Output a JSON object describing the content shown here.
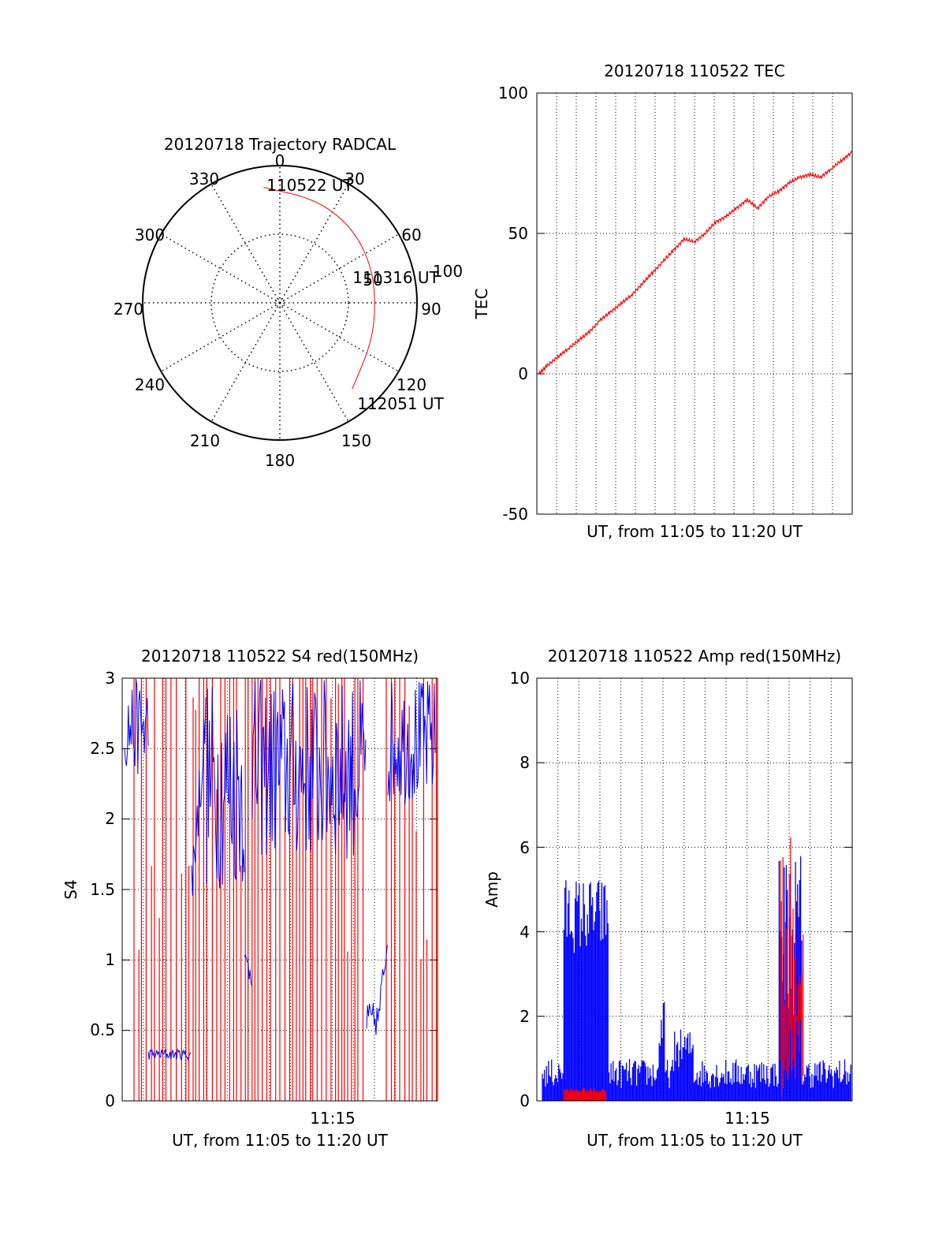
{
  "colors": {
    "red": "#ff0000",
    "blue": "#0000ff",
    "axis": "#000000",
    "grid": "#000000"
  },
  "chart_data": [
    {
      "id": "trajectory",
      "type": "polar",
      "title": "20120718 Trajectory RADCAL",
      "angle_labels": [
        "0",
        "30",
        "60",
        "90",
        "120",
        "150",
        "180",
        "210",
        "240",
        "270",
        "300",
        "330"
      ],
      "radial_labels": [
        "50",
        "100"
      ],
      "radial_max": 100,
      "grid": true,
      "track": {
        "color": "red",
        "points": [
          {
            "azimuth": 352,
            "zenith": 85
          },
          {
            "azimuth": 20,
            "zenith": 80
          },
          {
            "azimuth": 45,
            "zenith": 76
          },
          {
            "azimuth": 70,
            "zenith": 72
          },
          {
            "azimuth": 95,
            "zenith": 70
          },
          {
            "azimuth": 115,
            "zenith": 73
          },
          {
            "azimuth": 140,
            "zenith": 82
          }
        ]
      },
      "annotations": [
        {
          "text": "110522 UT",
          "azimuth": 1,
          "zenith": 88
        },
        {
          "text": "111316 UT",
          "azimuth": 76,
          "zenith": 85
        },
        {
          "text": "112051 UT",
          "azimuth": 139,
          "zenith": 110
        }
      ]
    },
    {
      "id": "tec",
      "type": "line",
      "title": "20120718 110522 TEC",
      "xlabel": "UT, from 11:05 to 11:20 UT",
      "ylabel": "TEC",
      "ylim": [
        -50,
        100
      ],
      "yticks": [
        "100",
        "50",
        "0",
        "-50"
      ],
      "xlim": [
        0,
        15
      ],
      "xticks": [],
      "grid": true,
      "series": [
        {
          "color": "red",
          "x": [
            0.1,
            0.5,
            1.0,
            1.5,
            2.0,
            2.5,
            3.0,
            3.5,
            4.0,
            4.5,
            5.0,
            5.5,
            6.0,
            6.5,
            7.0,
            7.5,
            8.0,
            8.5,
            9.0,
            9.5,
            10.0,
            10.5,
            11.0,
            11.5,
            12.0,
            12.5,
            13.0,
            13.5,
            14.0,
            14.5,
            15.0
          ],
          "y": [
            0,
            3,
            6,
            9,
            12,
            15,
            19,
            22,
            25,
            28,
            32,
            36,
            40,
            44,
            48,
            47,
            50,
            54,
            56,
            59,
            62,
            59,
            63,
            65,
            68,
            70,
            71,
            70,
            73,
            76,
            79
          ]
        }
      ]
    },
    {
      "id": "s4",
      "type": "line",
      "title": "20120718 110522 S4 red(150MHz)",
      "xlabel": "UT, from 11:05 to 11:20 UT",
      "ylabel": "S4",
      "ylim": [
        0,
        3
      ],
      "yticks": [
        "3",
        "2.5",
        "2",
        "1.5",
        "1",
        "0.5",
        "0"
      ],
      "xlim": [
        0,
        15
      ],
      "xticks": [
        {
          "value": 10,
          "label": "11:15"
        }
      ],
      "grid": true,
      "series": [
        {
          "color": "red",
          "name": "",
          "values_note": ""
        },
        {
          "color": "blue",
          "name": ""
        }
      ]
    },
    {
      "id": "amp",
      "type": "line",
      "title": "20120718 110522 Amp red(150MHz)",
      "xlabel": "UT, from 11:05 to 11:20 UT",
      "ylabel": "Amp",
      "ylim": [
        0,
        10
      ],
      "yticks": [
        "10",
        "8",
        "6",
        "4",
        "2",
        "0"
      ],
      "xlim": [
        0,
        15
      ],
      "xticks": [
        {
          "value": 10,
          "label": "11:15"
        }
      ],
      "grid": true,
      "series": [
        {
          "color": "blue",
          "name": ""
        },
        {
          "color": "red",
          "name": ""
        }
      ]
    }
  ]
}
